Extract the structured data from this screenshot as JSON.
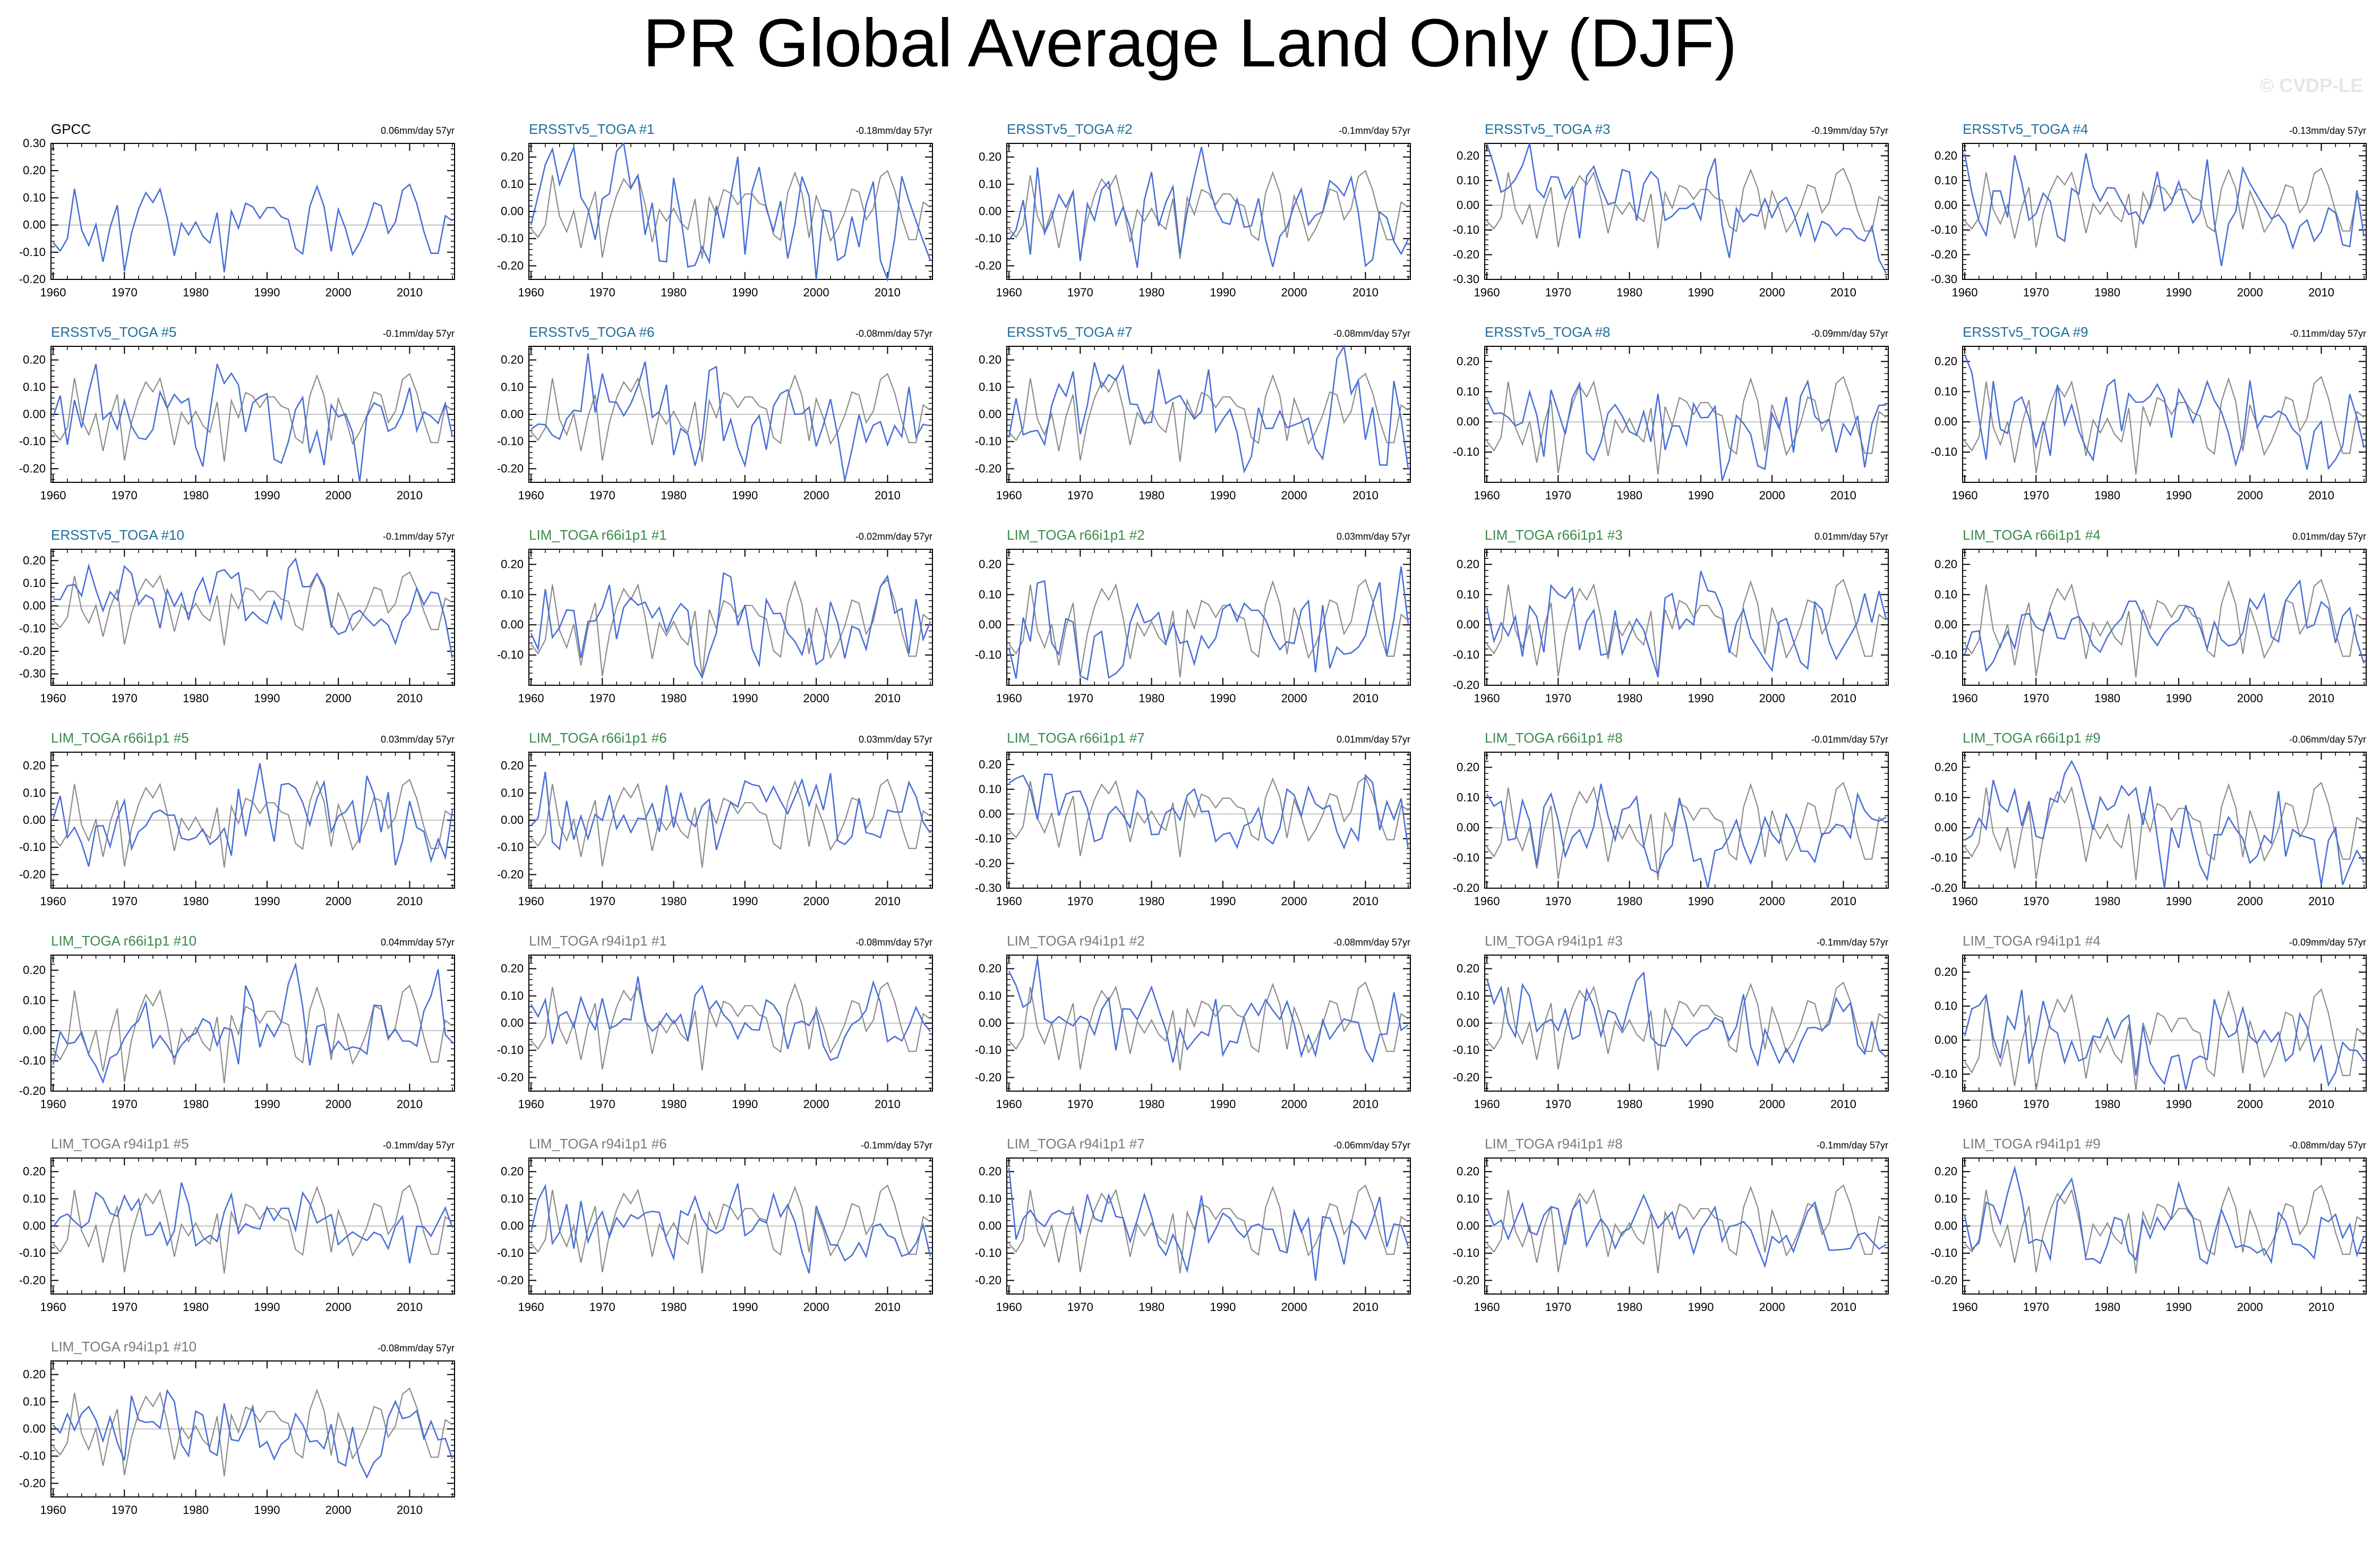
{
  "page_title": "PR Global Average Land Only (DJF)",
  "watermark": "© CVDP-LE",
  "colors": {
    "series": "#4a6fd6",
    "reference": "#8c8c8c",
    "zero_line": "#b0b0b0",
    "title_ersst": "#1f6f9a",
    "title_lim66": "#3a8a4a",
    "title_lim94": "#7a7a7a",
    "title_obs": "#000000"
  },
  "chart_data": [
    {
      "type": "line",
      "title": "GPCC",
      "title_group": "obs",
      "trend": "0.06mm/day 57yr",
      "ylim": [
        -0.2,
        0.3
      ],
      "yticks": [
        0.3,
        0.2,
        0.1,
        0.0,
        -0.1,
        -0.2
      ],
      "x_start": 1960,
      "x_end": 2016,
      "xticks": [
        1960,
        1970,
        1980,
        1990,
        2000,
        2010
      ],
      "seed": 11,
      "amp": 0.11,
      "trend_slope": 0.06,
      "show_reference": false
    },
    {
      "type": "line",
      "title": "ERSSTv5_TOGA #1",
      "title_group": "ersst",
      "trend": "-0.18mm/day 57yr",
      "ylim": [
        -0.25,
        0.25
      ],
      "yticks": [
        0.2,
        0.1,
        0.0,
        -0.1,
        -0.2
      ],
      "x_start": 1960,
      "x_end": 2016,
      "xticks": [
        1960,
        1970,
        1980,
        1990,
        2000,
        2010
      ],
      "seed": 21,
      "amp": 0.12,
      "trend_slope": -0.18,
      "show_reference": true
    },
    {
      "type": "line",
      "title": "ERSSTv5_TOGA #2",
      "title_group": "ersst",
      "trend": "-0.1mm/day 57yr",
      "ylim": [
        -0.25,
        0.25
      ],
      "yticks": [
        0.2,
        0.1,
        0.0,
        -0.1,
        -0.2
      ],
      "x_start": 1960,
      "x_end": 2016,
      "xticks": [
        1960,
        1970,
        1980,
        1990,
        2000,
        2010
      ],
      "seed": 22,
      "amp": 0.11,
      "trend_slope": -0.1,
      "show_reference": true
    },
    {
      "type": "line",
      "title": "ERSSTv5_TOGA #3",
      "title_group": "ersst",
      "trend": "-0.19mm/day 57yr",
      "ylim": [
        -0.3,
        0.25
      ],
      "yticks": [
        0.2,
        0.1,
        0.0,
        -0.1,
        -0.2,
        -0.3
      ],
      "x_start": 1960,
      "x_end": 2016,
      "xticks": [
        1960,
        1970,
        1980,
        1990,
        2000,
        2010
      ],
      "seed": 23,
      "amp": 0.1,
      "trend_slope": -0.19,
      "show_reference": true
    },
    {
      "type": "line",
      "title": "ERSSTv5_TOGA #4",
      "title_group": "ersst",
      "trend": "-0.13mm/day 57yr",
      "ylim": [
        -0.3,
        0.25
      ],
      "yticks": [
        0.2,
        0.1,
        0.0,
        -0.1,
        -0.2,
        -0.3
      ],
      "x_start": 1960,
      "x_end": 2016,
      "xticks": [
        1960,
        1970,
        1980,
        1990,
        2000,
        2010
      ],
      "seed": 24,
      "amp": 0.11,
      "trend_slope": -0.13,
      "show_reference": true
    },
    {
      "type": "line",
      "title": "ERSSTv5_TOGA #5",
      "title_group": "ersst",
      "trend": "-0.1mm/day 57yr",
      "ylim": [
        -0.25,
        0.25
      ],
      "yticks": [
        0.2,
        0.1,
        0.0,
        -0.1,
        -0.2
      ],
      "x_start": 1960,
      "x_end": 2016,
      "xticks": [
        1960,
        1970,
        1980,
        1990,
        2000,
        2010
      ],
      "seed": 25,
      "amp": 0.11,
      "trend_slope": -0.1,
      "show_reference": true
    },
    {
      "type": "line",
      "title": "ERSSTv5_TOGA #6",
      "title_group": "ersst",
      "trend": "-0.08mm/day 57yr",
      "ylim": [
        -0.25,
        0.25
      ],
      "yticks": [
        0.2,
        0.1,
        0.0,
        -0.1,
        -0.2
      ],
      "x_start": 1960,
      "x_end": 2016,
      "xticks": [
        1960,
        1970,
        1980,
        1990,
        2000,
        2010
      ],
      "seed": 26,
      "amp": 0.12,
      "trend_slope": -0.08,
      "show_reference": true
    },
    {
      "type": "line",
      "title": "ERSSTv5_TOGA #7",
      "title_group": "ersst",
      "trend": "-0.08mm/day 57yr",
      "ylim": [
        -0.25,
        0.25
      ],
      "yticks": [
        0.2,
        0.1,
        0.0,
        -0.1,
        -0.2
      ],
      "x_start": 1960,
      "x_end": 2016,
      "xticks": [
        1960,
        1970,
        1980,
        1990,
        2000,
        2010
      ],
      "seed": 27,
      "amp": 0.12,
      "trend_slope": -0.08,
      "show_reference": true
    },
    {
      "type": "line",
      "title": "ERSSTv5_TOGA #8",
      "title_group": "ersst",
      "trend": "-0.09mm/day 57yr",
      "ylim": [
        -0.2,
        0.25
      ],
      "yticks": [
        0.2,
        0.1,
        0.0,
        -0.1
      ],
      "x_start": 1960,
      "x_end": 2016,
      "xticks": [
        1960,
        1970,
        1980,
        1990,
        2000,
        2010
      ],
      "seed": 28,
      "amp": 0.1,
      "trend_slope": -0.09,
      "show_reference": true
    },
    {
      "type": "line",
      "title": "ERSSTv5_TOGA #9",
      "title_group": "ersst",
      "trend": "-0.11mm/day 57yr",
      "ylim": [
        -0.2,
        0.25
      ],
      "yticks": [
        0.2,
        0.1,
        0.0,
        -0.1
      ],
      "x_start": 1960,
      "x_end": 2016,
      "xticks": [
        1960,
        1970,
        1980,
        1990,
        2000,
        2010
      ],
      "seed": 29,
      "amp": 0.1,
      "trend_slope": -0.11,
      "show_reference": true
    },
    {
      "type": "line",
      "title": "ERSSTv5_TOGA #10",
      "title_group": "ersst",
      "trend": "-0.1mm/day 57yr",
      "ylim": [
        -0.35,
        0.25
      ],
      "yticks": [
        0.2,
        0.1,
        0.0,
        -0.1,
        -0.2,
        -0.3
      ],
      "x_start": 1960,
      "x_end": 2016,
      "xticks": [
        1960,
        1970,
        1980,
        1990,
        2000,
        2010
      ],
      "seed": 30,
      "amp": 0.11,
      "trend_slope": -0.1,
      "show_reference": true
    },
    {
      "type": "line",
      "title": "LIM_TOGA r66i1p1 #1",
      "title_group": "lim66",
      "trend": "-0.02mm/day 57yr",
      "ylim": [
        -0.2,
        0.25
      ],
      "yticks": [
        0.2,
        0.1,
        0.0,
        -0.1
      ],
      "x_start": 1960,
      "x_end": 2016,
      "xticks": [
        1960,
        1970,
        1980,
        1990,
        2000,
        2010
      ],
      "seed": 31,
      "amp": 0.09,
      "trend_slope": -0.02,
      "show_reference": true
    },
    {
      "type": "line",
      "title": "LIM_TOGA r66i1p1 #2",
      "title_group": "lim66",
      "trend": "0.03mm/day 57yr",
      "ylim": [
        -0.2,
        0.25
      ],
      "yticks": [
        0.2,
        0.1,
        0.0,
        -0.1
      ],
      "x_start": 1960,
      "x_end": 2016,
      "xticks": [
        1960,
        1970,
        1980,
        1990,
        2000,
        2010
      ],
      "seed": 32,
      "amp": 0.09,
      "trend_slope": 0.03,
      "show_reference": true
    },
    {
      "type": "line",
      "title": "LIM_TOGA r66i1p1 #3",
      "title_group": "lim66",
      "trend": "0.01mm/day 57yr",
      "ylim": [
        -0.2,
        0.25
      ],
      "yticks": [
        0.2,
        0.1,
        0.0,
        -0.1,
        -0.2
      ],
      "x_start": 1960,
      "x_end": 2016,
      "xticks": [
        1960,
        1970,
        1980,
        1990,
        2000,
        2010
      ],
      "seed": 33,
      "amp": 0.09,
      "trend_slope": 0.01,
      "show_reference": true
    },
    {
      "type": "line",
      "title": "LIM_TOGA r66i1p1 #4",
      "title_group": "lim66",
      "trend": "0.01mm/day 57yr",
      "ylim": [
        -0.2,
        0.25
      ],
      "yticks": [
        0.2,
        0.1,
        0.0,
        -0.1
      ],
      "x_start": 1960,
      "x_end": 2016,
      "xticks": [
        1960,
        1970,
        1980,
        1990,
        2000,
        2010
      ],
      "seed": 34,
      "amp": 0.08,
      "trend_slope": 0.01,
      "show_reference": true
    },
    {
      "type": "line",
      "title": "LIM_TOGA r66i1p1 #5",
      "title_group": "lim66",
      "trend": "0.03mm/day 57yr",
      "ylim": [
        -0.25,
        0.25
      ],
      "yticks": [
        0.2,
        0.1,
        0.0,
        -0.1,
        -0.2
      ],
      "x_start": 1960,
      "x_end": 2016,
      "xticks": [
        1960,
        1970,
        1980,
        1990,
        2000,
        2010
      ],
      "seed": 35,
      "amp": 0.1,
      "trend_slope": 0.03,
      "show_reference": true
    },
    {
      "type": "line",
      "title": "LIM_TOGA r66i1p1 #6",
      "title_group": "lim66",
      "trend": "0.03mm/day 57yr",
      "ylim": [
        -0.25,
        0.25
      ],
      "yticks": [
        0.2,
        0.1,
        0.0,
        -0.1,
        -0.2
      ],
      "x_start": 1960,
      "x_end": 2016,
      "xticks": [
        1960,
        1970,
        1980,
        1990,
        2000,
        2010
      ],
      "seed": 36,
      "amp": 0.1,
      "trend_slope": 0.03,
      "show_reference": true
    },
    {
      "type": "line",
      "title": "LIM_TOGA r66i1p1 #7",
      "title_group": "lim66",
      "trend": "0.01mm/day 57yr",
      "ylim": [
        -0.3,
        0.25
      ],
      "yticks": [
        0.2,
        0.1,
        0.0,
        -0.1,
        -0.2,
        -0.3
      ],
      "x_start": 1960,
      "x_end": 2016,
      "xticks": [
        1960,
        1970,
        1980,
        1990,
        2000,
        2010
      ],
      "seed": 37,
      "amp": 0.1,
      "trend_slope": 0.01,
      "show_reference": true
    },
    {
      "type": "line",
      "title": "LIM_TOGA r66i1p1 #8",
      "title_group": "lim66",
      "trend": "-0.01mm/day 57yr",
      "ylim": [
        -0.2,
        0.25
      ],
      "yticks": [
        0.2,
        0.1,
        0.0,
        -0.1,
        -0.2
      ],
      "x_start": 1960,
      "x_end": 2016,
      "xticks": [
        1960,
        1970,
        1980,
        1990,
        2000,
        2010
      ],
      "seed": 38,
      "amp": 0.1,
      "trend_slope": -0.01,
      "show_reference": true
    },
    {
      "type": "line",
      "title": "LIM_TOGA r66i1p1 #9",
      "title_group": "lim66",
      "trend": "-0.06mm/day 57yr",
      "ylim": [
        -0.2,
        0.25
      ],
      "yticks": [
        0.2,
        0.1,
        0.0,
        -0.1,
        -0.2
      ],
      "x_start": 1960,
      "x_end": 2016,
      "xticks": [
        1960,
        1970,
        1980,
        1990,
        2000,
        2010
      ],
      "seed": 39,
      "amp": 0.09,
      "trend_slope": -0.06,
      "show_reference": true
    },
    {
      "type": "line",
      "title": "LIM_TOGA r66i1p1 #10",
      "title_group": "lim66",
      "trend": "0.04mm/day 57yr",
      "ylim": [
        -0.2,
        0.25
      ],
      "yticks": [
        0.2,
        0.1,
        0.0,
        -0.1,
        -0.2
      ],
      "x_start": 1960,
      "x_end": 2016,
      "xticks": [
        1960,
        1970,
        1980,
        1990,
        2000,
        2010
      ],
      "seed": 40,
      "amp": 0.09,
      "trend_slope": 0.04,
      "show_reference": true
    },
    {
      "type": "line",
      "title": "LIM_TOGA r94i1p1 #1",
      "title_group": "lim94",
      "trend": "-0.08mm/day 57yr",
      "ylim": [
        -0.25,
        0.25
      ],
      "yticks": [
        0.2,
        0.1,
        0.0,
        -0.1,
        -0.2
      ],
      "x_start": 1960,
      "x_end": 2016,
      "xticks": [
        1960,
        1970,
        1980,
        1990,
        2000,
        2010
      ],
      "seed": 41,
      "amp": 0.09,
      "trend_slope": -0.08,
      "show_reference": true
    },
    {
      "type": "line",
      "title": "LIM_TOGA r94i1p1 #2",
      "title_group": "lim94",
      "trend": "-0.08mm/day 57yr",
      "ylim": [
        -0.25,
        0.25
      ],
      "yticks": [
        0.2,
        0.1,
        0.0,
        -0.1,
        -0.2
      ],
      "x_start": 1960,
      "x_end": 2016,
      "xticks": [
        1960,
        1970,
        1980,
        1990,
        2000,
        2010
      ],
      "seed": 42,
      "amp": 0.09,
      "trend_slope": -0.08,
      "show_reference": true
    },
    {
      "type": "line",
      "title": "LIM_TOGA r94i1p1 #3",
      "title_group": "lim94",
      "trend": "-0.1mm/day 57yr",
      "ylim": [
        -0.25,
        0.25
      ],
      "yticks": [
        0.2,
        0.1,
        0.0,
        -0.1,
        -0.2
      ],
      "x_start": 1960,
      "x_end": 2016,
      "xticks": [
        1960,
        1970,
        1980,
        1990,
        2000,
        2010
      ],
      "seed": 43,
      "amp": 0.08,
      "trend_slope": -0.1,
      "show_reference": true
    },
    {
      "type": "line",
      "title": "LIM_TOGA r94i1p1 #4",
      "title_group": "lim94",
      "trend": "-0.09mm/day 57yr",
      "ylim": [
        -0.15,
        0.25
      ],
      "yticks": [
        0.2,
        0.1,
        0.0,
        -0.1
      ],
      "x_start": 1960,
      "x_end": 2016,
      "xticks": [
        1960,
        1970,
        1980,
        1990,
        2000,
        2010
      ],
      "seed": 44,
      "amp": 0.08,
      "trend_slope": -0.09,
      "show_reference": true
    },
    {
      "type": "line",
      "title": "LIM_TOGA r94i1p1 #5",
      "title_group": "lim94",
      "trend": "-0.1mm/day 57yr",
      "ylim": [
        -0.25,
        0.25
      ],
      "yticks": [
        0.2,
        0.1,
        0.0,
        -0.1,
        -0.2
      ],
      "x_start": 1960,
      "x_end": 2016,
      "xticks": [
        1960,
        1970,
        1980,
        1990,
        2000,
        2010
      ],
      "seed": 45,
      "amp": 0.08,
      "trend_slope": -0.1,
      "show_reference": true
    },
    {
      "type": "line",
      "title": "LIM_TOGA r94i1p1 #6",
      "title_group": "lim94",
      "trend": "-0.1mm/day 57yr",
      "ylim": [
        -0.25,
        0.25
      ],
      "yticks": [
        0.2,
        0.1,
        0.0,
        -0.1,
        -0.2
      ],
      "x_start": 1960,
      "x_end": 2016,
      "xticks": [
        1960,
        1970,
        1980,
        1990,
        2000,
        2010
      ],
      "seed": 46,
      "amp": 0.08,
      "trend_slope": -0.1,
      "show_reference": true
    },
    {
      "type": "line",
      "title": "LIM_TOGA r94i1p1 #7",
      "title_group": "lim94",
      "trend": "-0.06mm/day 57yr",
      "ylim": [
        -0.25,
        0.25
      ],
      "yticks": [
        0.2,
        0.1,
        0.0,
        -0.1,
        -0.2
      ],
      "x_start": 1960,
      "x_end": 2016,
      "xticks": [
        1960,
        1970,
        1980,
        1990,
        2000,
        2010
      ],
      "seed": 47,
      "amp": 0.09,
      "trend_slope": -0.06,
      "show_reference": true
    },
    {
      "type": "line",
      "title": "LIM_TOGA r94i1p1 #8",
      "title_group": "lim94",
      "trend": "-0.1mm/day 57yr",
      "ylim": [
        -0.25,
        0.25
      ],
      "yticks": [
        0.2,
        0.1,
        0.0,
        -0.1,
        -0.2
      ],
      "x_start": 1960,
      "x_end": 2016,
      "xticks": [
        1960,
        1970,
        1980,
        1990,
        2000,
        2010
      ],
      "seed": 48,
      "amp": 0.08,
      "trend_slope": -0.1,
      "show_reference": true
    },
    {
      "type": "line",
      "title": "LIM_TOGA r94i1p1 #9",
      "title_group": "lim94",
      "trend": "-0.08mm/day 57yr",
      "ylim": [
        -0.25,
        0.25
      ],
      "yticks": [
        0.2,
        0.1,
        0.0,
        -0.1,
        -0.2
      ],
      "x_start": 1960,
      "x_end": 2016,
      "xticks": [
        1960,
        1970,
        1980,
        1990,
        2000,
        2010
      ],
      "seed": 49,
      "amp": 0.09,
      "trend_slope": -0.08,
      "show_reference": true
    },
    {
      "type": "line",
      "title": "LIM_TOGA r94i1p1 #10",
      "title_group": "lim94",
      "trend": "-0.08mm/day 57yr",
      "ylim": [
        -0.25,
        0.25
      ],
      "yticks": [
        0.2,
        0.1,
        0.0,
        -0.1,
        -0.2
      ],
      "x_start": 1960,
      "x_end": 2016,
      "xticks": [
        1960,
        1970,
        1980,
        1990,
        2000,
        2010
      ],
      "seed": 50,
      "amp": 0.09,
      "trend_slope": -0.08,
      "show_reference": true
    }
  ]
}
